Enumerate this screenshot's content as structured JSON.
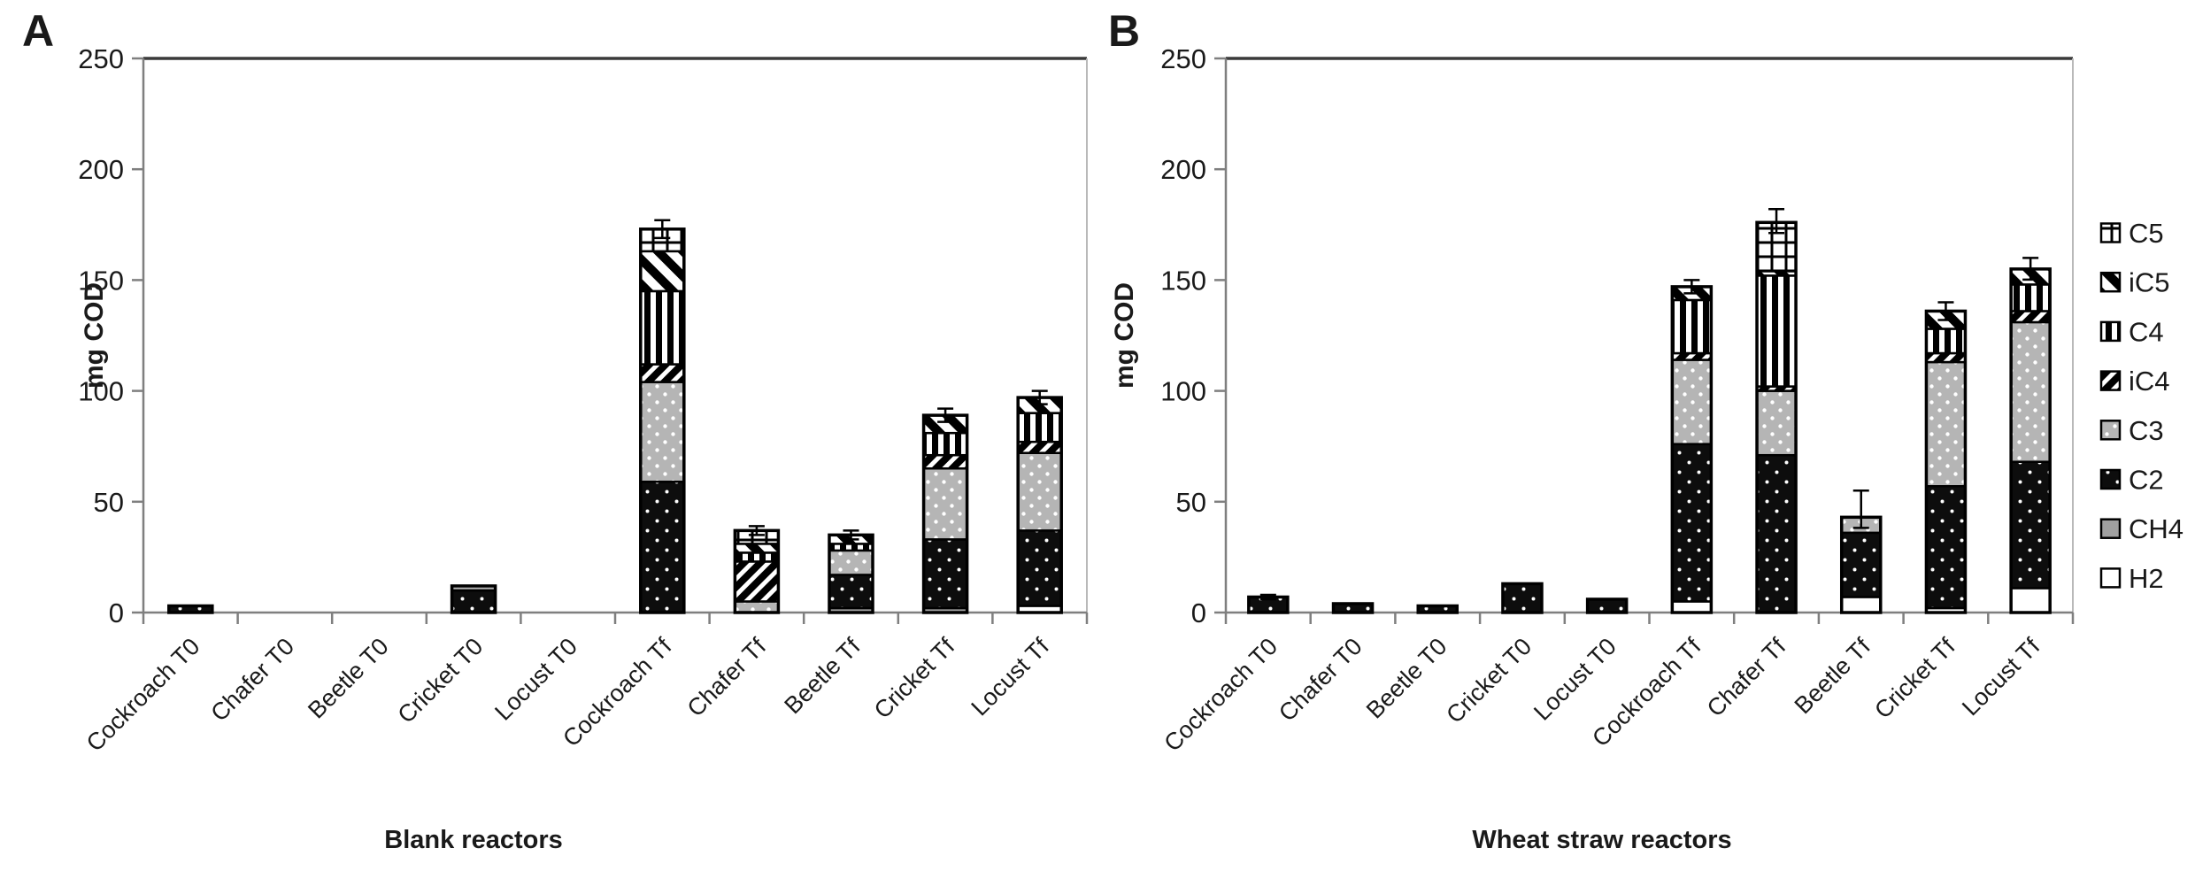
{
  "figure_title": "",
  "colors": {
    "black": "#0d0d0d",
    "bar_border": "#000000",
    "gray_CH4": "#a0a0a0",
    "gray_C3": "#b5b5b5",
    "axis_dark": "#3a3a3a",
    "axis_gray": "#7f7f7f",
    "axis_light": "#b9b9b9",
    "text": "#1a1a1a"
  },
  "legend": {
    "position": "right",
    "entries": [
      {
        "label": "C5",
        "pattern": "grid"
      },
      {
        "label": "iC5",
        "pattern": "diagonal-up-wide"
      },
      {
        "label": "C4",
        "pattern": "vertical-stripes"
      },
      {
        "label": "iC4",
        "pattern": "diagonal-down"
      },
      {
        "label": "C3",
        "pattern": "gray-dots"
      },
      {
        "label": "C2",
        "pattern": "black-dots"
      },
      {
        "label": "CH4",
        "pattern": "solid-gray"
      },
      {
        "label": "H2",
        "pattern": "white"
      }
    ]
  },
  "chart_data": [
    {
      "type": "bar",
      "stacked": true,
      "panel_label": "A",
      "xlabel": "Blank reactors",
      "ylabel": "mg COD",
      "ylim": [
        0,
        250
      ],
      "yticks": [
        0,
        50,
        100,
        150,
        200,
        250
      ],
      "grid": false,
      "categories": [
        "Cockroach T0",
        "Chafer T0",
        "Beetle T0",
        "Cricket T0",
        "Locust T0",
        "Cockroach Tf",
        "Chafer Tf",
        "Beetle Tf",
        "Cricket Tf",
        "Locust Tf"
      ],
      "series": [
        {
          "name": "H2",
          "values": [
            0,
            0,
            0,
            0,
            0,
            0,
            0,
            0,
            0,
            3
          ]
        },
        {
          "name": "CH4",
          "values": [
            0,
            0,
            0,
            0,
            0,
            0,
            0,
            2,
            2,
            0
          ]
        },
        {
          "name": "C2",
          "values": [
            3,
            0,
            0,
            10,
            0,
            59,
            0,
            15,
            31,
            34
          ]
        },
        {
          "name": "C3",
          "values": [
            0,
            0,
            0,
            2,
            0,
            45,
            5,
            11,
            32,
            35
          ]
        },
        {
          "name": "iC4",
          "values": [
            0,
            0,
            0,
            0,
            0,
            8,
            18,
            0,
            6,
            5
          ]
        },
        {
          "name": "C4",
          "values": [
            0,
            0,
            0,
            0,
            0,
            33,
            4,
            3,
            10,
            13
          ]
        },
        {
          "name": "iC5",
          "values": [
            0,
            0,
            0,
            0,
            0,
            18,
            4,
            4,
            8,
            7
          ]
        },
        {
          "name": "C5",
          "values": [
            0,
            0,
            0,
            0,
            0,
            10,
            6,
            0,
            0,
            0
          ]
        }
      ],
      "totals": [
        3,
        0,
        0,
        12,
        0,
        173,
        37,
        35,
        89,
        97
      ],
      "errors_top": [
        0,
        0,
        0,
        0,
        0,
        4,
        2,
        2,
        3,
        3
      ]
    },
    {
      "type": "bar",
      "stacked": true,
      "panel_label": "B",
      "xlabel": "Wheat straw reactors",
      "ylabel": "mg COD",
      "ylim": [
        0,
        250
      ],
      "yticks": [
        0,
        50,
        100,
        150,
        200,
        250
      ],
      "grid": false,
      "categories": [
        "Cockroach T0",
        "Chafer T0",
        "Beetle T0",
        "Cricket T0",
        "Locust T0",
        "Cockroach Tf",
        "Chafer Tf",
        "Beetle Tf",
        "Cricket Tf",
        "Locust Tf"
      ],
      "series": [
        {
          "name": "H2",
          "values": [
            0,
            0,
            0,
            0,
            0,
            5,
            0,
            7,
            2,
            11
          ]
        },
        {
          "name": "CH4",
          "values": [
            0,
            0,
            0,
            0,
            0,
            0,
            0,
            0,
            0,
            0
          ]
        },
        {
          "name": "C2",
          "values": [
            7,
            4,
            3,
            13,
            6,
            71,
            71,
            29,
            55,
            57
          ]
        },
        {
          "name": "C3",
          "values": [
            0,
            0,
            0,
            0,
            0,
            38,
            29,
            7,
            56,
            63
          ]
        },
        {
          "name": "iC4",
          "values": [
            0,
            0,
            0,
            0,
            0,
            3,
            2,
            0,
            4,
            5
          ]
        },
        {
          "name": "C4",
          "values": [
            0,
            0,
            0,
            0,
            0,
            24,
            50,
            0,
            11,
            12
          ]
        },
        {
          "name": "iC5",
          "values": [
            0,
            0,
            0,
            0,
            0,
            6,
            2,
            0,
            8,
            7
          ]
        },
        {
          "name": "C5",
          "values": [
            0,
            0,
            0,
            0,
            0,
            0,
            22,
            0,
            0,
            0
          ]
        }
      ],
      "totals": [
        7,
        4,
        3,
        13,
        6,
        147,
        176,
        43,
        136,
        155
      ],
      "errors_top": [
        1,
        0,
        0,
        0,
        0,
        3,
        6,
        12,
        4,
        5
      ]
    }
  ]
}
